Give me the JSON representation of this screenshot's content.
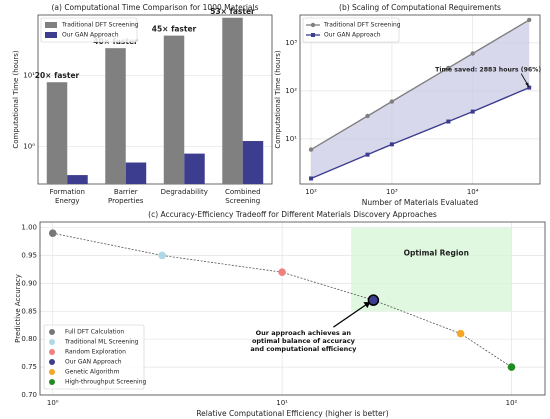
{
  "chart_data": [
    {
      "type": "bar",
      "title": "(a) Computational Time Comparison for 1000 Materials",
      "ylabel": "Computational Time (hours)",
      "categories": [
        "Formation Energy",
        "Barrier Properties",
        "Degradability",
        "Combined Screening"
      ],
      "series": [
        {
          "name": "Traditional DFT Screening",
          "color": "#808080",
          "values": [
            8,
            24,
            36,
            64
          ]
        },
        {
          "name": "Our GAN Approach",
          "color": "#3d3d8f",
          "values": [
            0.4,
            0.6,
            0.8,
            1.2
          ]
        }
      ],
      "annotations": [
        "20× faster",
        "40× faster",
        "45× faster",
        "53× faster"
      ],
      "annotation_color": "#e8141b",
      "yscale": "log",
      "ylim": [
        0.3,
        70
      ],
      "yticks": [
        {
          "value": 1,
          "label": "10⁰"
        },
        {
          "value": 10,
          "label": "10¹"
        }
      ],
      "grid": true,
      "legend": "upper left"
    },
    {
      "type": "line",
      "title": "(b) Scaling of Computational Requirements",
      "xlabel": "Number of Materials Evaluated",
      "ylabel": "Computational Time (hours)",
      "x": [
        100,
        500,
        1000,
        5000,
        10000,
        50000
      ],
      "series": [
        {
          "name": "Traditional DFT Screening",
          "color": "#808080",
          "marker": "circle",
          "values": [
            6,
            30,
            60,
            300,
            600,
            3000
          ]
        },
        {
          "name": "Our GAN Approach",
          "color": "#3d3d8f",
          "marker": "square",
          "values": [
            1.5,
            4.7,
            7.7,
            23,
            37,
            117
          ]
        }
      ],
      "fill_between": true,
      "fill_color": "#c8c8e6",
      "annotation": "Time saved: 2883 hours (96%)",
      "xscale": "log",
      "yscale": "log",
      "xlim": [
        73,
        68000
      ],
      "ylim": [
        1.15,
        3800
      ],
      "xticks": [
        {
          "value": 100,
          "label": "10²"
        },
        {
          "value": 1000,
          "label": "10³"
        },
        {
          "value": 10000,
          "label": "10⁴"
        }
      ],
      "yticks": [
        {
          "value": 10,
          "label": "10¹"
        },
        {
          "value": 100,
          "label": "10²"
        },
        {
          "value": 1000,
          "label": "10³"
        }
      ],
      "grid": true,
      "legend": "upper left"
    },
    {
      "type": "scatter",
      "title": "(c) Accuracy-Efficiency Tradeoff for Different Materials Discovery Approaches",
      "xlabel": "Relative Computational Efficiency (higher is better)",
      "ylabel": "Predictive Accuracy",
      "series": [
        {
          "name": "Full DFT Calculation",
          "color": "#777777",
          "x": [
            1
          ],
          "values": [
            0.99
          ]
        },
        {
          "name": "Traditional ML Screening",
          "color": "#add8e6",
          "x": [
            3
          ],
          "values": [
            0.95
          ]
        },
        {
          "name": "Random Exploration",
          "color": "#f08080",
          "x": [
            10
          ],
          "values": [
            0.92
          ]
        },
        {
          "name": "Our GAN Approach",
          "color": "#3d3d8f",
          "x": [
            25
          ],
          "values": [
            0.87
          ],
          "highlight": true
        },
        {
          "name": "Genetic Algorithm",
          "color": "#f5a623",
          "x": [
            60
          ],
          "values": [
            0.81
          ]
        },
        {
          "name": "High-throughput Screening",
          "color": "#228b22",
          "x": [
            100
          ],
          "values": [
            0.75
          ]
        }
      ],
      "region": {
        "label": "Optimal Region",
        "color": "#d8f5d8",
        "x": [
          20,
          100
        ],
        "y": [
          0.85,
          1.0
        ]
      },
      "annotation": "Our approach achieves an optimal balance of accuracy and computational efficiency",
      "xscale": "log",
      "xlim": [
        0.88,
        140
      ],
      "ylim": [
        0.7,
        1.01
      ],
      "xticks": [
        {
          "value": 1,
          "label": "10⁰"
        },
        {
          "value": 10,
          "label": "10¹"
        },
        {
          "value": 100,
          "label": "10²"
        }
      ],
      "yticks": [
        {
          "value": 0.7,
          "label": "0.70"
        },
        0.75,
        {
          "value": 0.8,
          "label": "0.80"
        },
        0.85,
        {
          "value": 0.9,
          "label": "0.90"
        },
        0.95,
        {
          "value": 1.0,
          "label": "1.00"
        }
      ],
      "grid": true,
      "legend": "lower left"
    }
  ]
}
